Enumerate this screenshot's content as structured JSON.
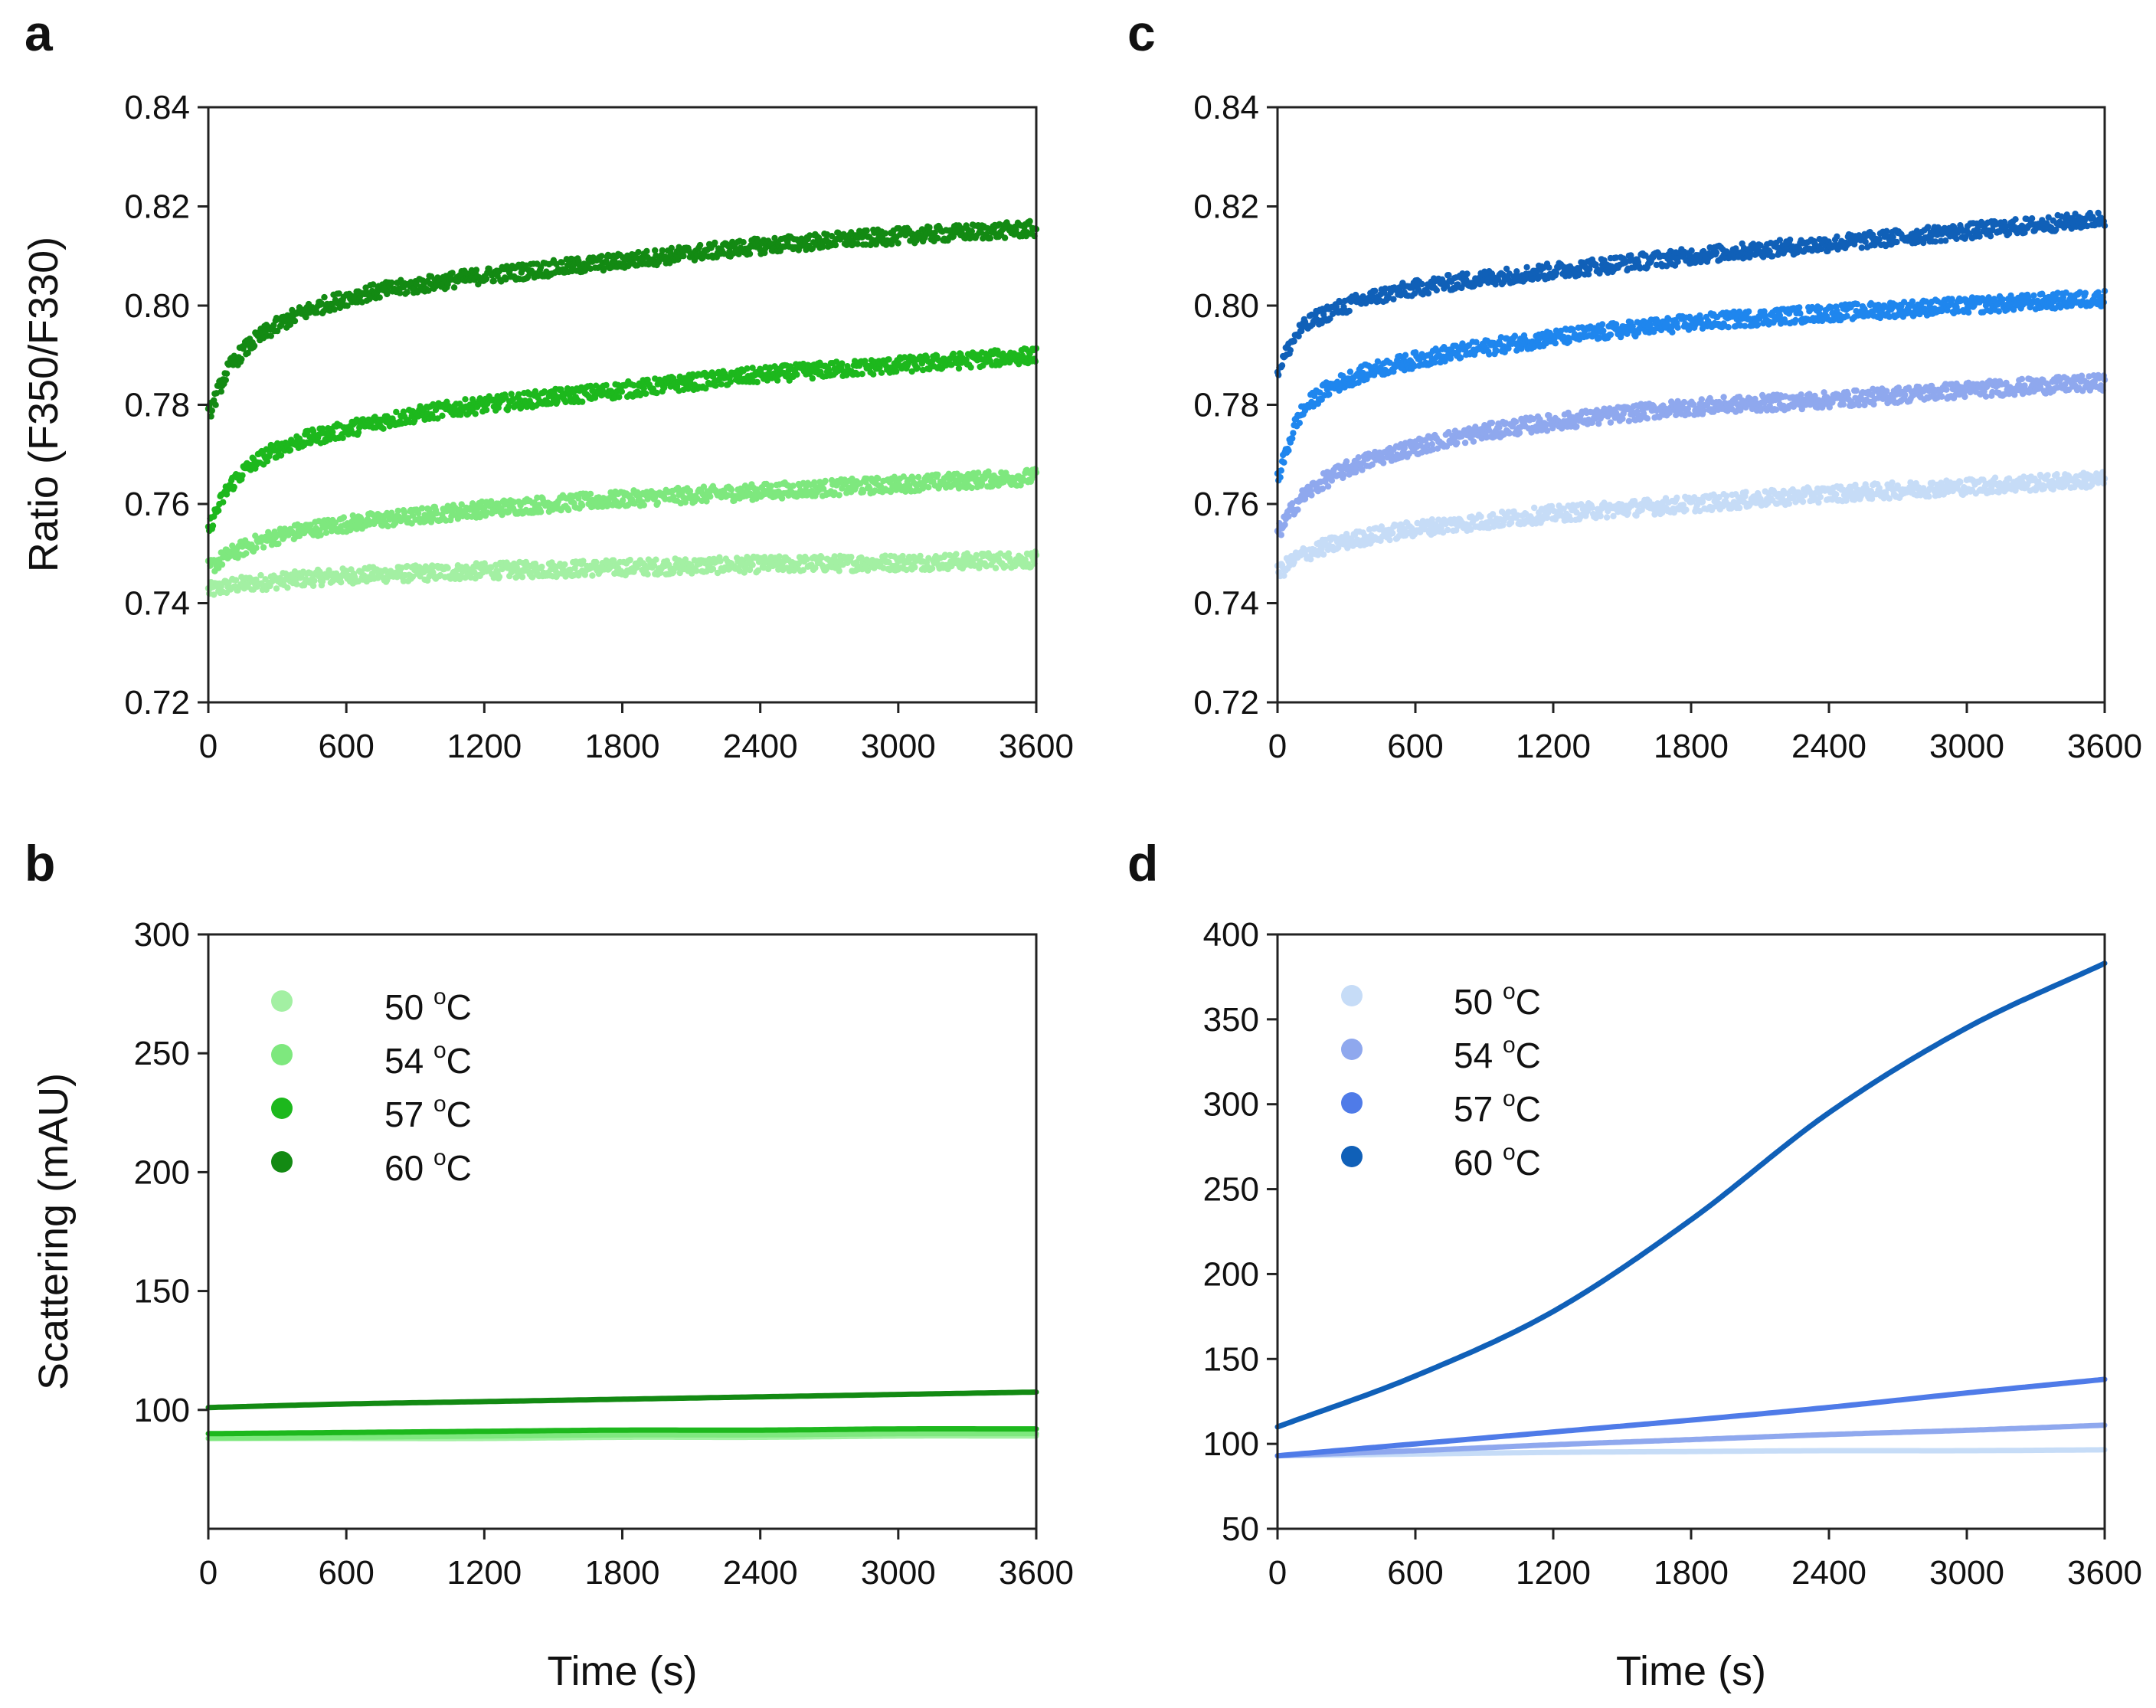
{
  "figure": {
    "panel_letters": [
      "a",
      "b",
      "c",
      "d"
    ],
    "colors": {
      "green": [
        "#a3f0a3",
        "#7ee87e",
        "#1db81d",
        "#138a13"
      ],
      "blue": [
        "#c6dcf7",
        "#8fa8ee",
        "#1f86ee",
        "#1060b8"
      ]
    }
  },
  "chart_data": [
    {
      "id": "a",
      "type": "scatter",
      "title": "",
      "xlabel": "",
      "ylabel": "Ratio (F350/F330)",
      "xlim": [
        0,
        3600
      ],
      "ylim": [
        0.72,
        0.84
      ],
      "xticks": [
        0,
        600,
        1200,
        1800,
        2400,
        3000,
        3600
      ],
      "xtick_labels": [
        "0",
        "600",
        "1200",
        "1800",
        "2400",
        "3000",
        "3600"
      ],
      "yticks": [
        0.72,
        0.74,
        0.76,
        0.78,
        0.8,
        0.82,
        0.84
      ],
      "ytick_labels": [
        "0.72",
        "0.74",
        "0.76",
        "0.78",
        "0.80",
        "0.82",
        "0.84"
      ],
      "x": [
        0,
        100,
        300,
        600,
        900,
        1200,
        1800,
        2400,
        3000,
        3600
      ],
      "series": [
        {
          "name": "50 °C",
          "color": "#a3f0a3",
          "values": [
            0.7425,
            0.7435,
            0.7445,
            0.7455,
            0.746,
            0.7465,
            0.7472,
            0.7478,
            0.7482,
            0.7488
          ]
        },
        {
          "name": "54 °C",
          "color": "#7ee87e",
          "values": [
            0.747,
            0.75,
            0.7535,
            0.756,
            0.7575,
            0.759,
            0.761,
            0.7625,
            0.764,
            0.7655
          ]
        },
        {
          "name": "57 °C",
          "color": "#1db81d",
          "values": [
            0.755,
            0.764,
            0.771,
            0.775,
            0.778,
            0.78,
            0.783,
            0.786,
            0.788,
            0.79
          ]
        },
        {
          "name": "60 °C",
          "color": "#138a13",
          "values": [
            0.778,
            0.788,
            0.796,
            0.8015,
            0.804,
            0.806,
            0.809,
            0.812,
            0.814,
            0.8155
          ]
        }
      ]
    },
    {
      "id": "b",
      "type": "line",
      "title": "",
      "xlabel": "Time (s)",
      "ylabel": "Scattering (mAU)",
      "xlim": [
        0,
        3600
      ],
      "ylim": [
        50,
        300
      ],
      "xticks": [
        0,
        600,
        1200,
        1800,
        2400,
        3000,
        3600
      ],
      "xtick_labels": [
        "0",
        "600",
        "1200",
        "1800",
        "2400",
        "3000",
        "3600"
      ],
      "yticks": [
        100,
        150,
        200,
        250,
        300
      ],
      "ytick_labels": [
        "100",
        "150",
        "200",
        "250",
        "300"
      ],
      "legend_position": "top-left",
      "legend_unit_sup": "o",
      "legend_unit": "C",
      "legend_labels": [
        "50",
        "54",
        "57",
        "60"
      ],
      "x": [
        0,
        600,
        1200,
        1800,
        2400,
        3000,
        3600
      ],
      "series": [
        {
          "name": "50 °C",
          "color": "#a3f0a3",
          "values": [
            88,
            88,
            88,
            88.5,
            88.5,
            89,
            89
          ]
        },
        {
          "name": "54 °C",
          "color": "#7ee87e",
          "values": [
            88,
            88.5,
            89,
            89.5,
            89.5,
            90,
            90
          ]
        },
        {
          "name": "57 °C",
          "color": "#1db81d",
          "values": [
            90,
            90.5,
            91,
            91.5,
            91.5,
            92,
            92
          ]
        },
        {
          "name": "60 °C",
          "color": "#138a13",
          "values": [
            101,
            102.5,
            103.5,
            104.5,
            105.5,
            106.5,
            107.5
          ]
        }
      ]
    },
    {
      "id": "c",
      "type": "scatter",
      "title": "",
      "xlabel": "",
      "ylabel": "",
      "xlim": [
        0,
        3600
      ],
      "ylim": [
        0.72,
        0.84
      ],
      "xticks": [
        0,
        600,
        1200,
        1800,
        2400,
        3000,
        3600
      ],
      "xtick_labels": [
        "0",
        "600",
        "1200",
        "1800",
        "2400",
        "3000",
        "3600"
      ],
      "yticks": [
        0.72,
        0.74,
        0.76,
        0.78,
        0.8,
        0.82,
        0.84
      ],
      "ytick_labels": [
        "0.72",
        "0.74",
        "0.76",
        "0.78",
        "0.80",
        "0.82",
        "0.84"
      ],
      "x": [
        0,
        100,
        300,
        600,
        900,
        1200,
        1800,
        2400,
        3000,
        3600
      ],
      "series": [
        {
          "name": "50 °C",
          "color": "#c6dcf7",
          "values": [
            0.746,
            0.7495,
            0.7525,
            0.755,
            0.7565,
            0.758,
            0.76,
            0.762,
            0.7635,
            0.765
          ]
        },
        {
          "name": "54 °C",
          "color": "#8fa8ee",
          "values": [
            0.754,
            0.761,
            0.767,
            0.7715,
            0.7745,
            0.7765,
            0.7795,
            0.781,
            0.783,
            0.7845
          ]
        },
        {
          "name": "57 °C",
          "color": "#1f86ee",
          "values": [
            0.765,
            0.778,
            0.785,
            0.789,
            0.7915,
            0.7935,
            0.7965,
            0.7985,
            0.8,
            0.8015
          ]
        },
        {
          "name": "60 °C",
          "color": "#1060b8",
          "values": [
            0.787,
            0.795,
            0.8,
            0.8035,
            0.8055,
            0.807,
            0.81,
            0.8125,
            0.815,
            0.8175
          ]
        }
      ]
    },
    {
      "id": "d",
      "type": "line",
      "title": "",
      "xlabel": "Time (s)",
      "ylabel": "",
      "xlim": [
        0,
        3600
      ],
      "ylim": [
        50,
        400
      ],
      "xticks": [
        0,
        600,
        1200,
        1800,
        2400,
        3000,
        3600
      ],
      "xtick_labels": [
        "0",
        "600",
        "1200",
        "1800",
        "2400",
        "3000",
        "3600"
      ],
      "yticks": [
        50,
        100,
        150,
        200,
        250,
        300,
        350,
        400
      ],
      "ytick_labels": [
        "50",
        "100",
        "150",
        "200",
        "250",
        "300",
        "350",
        "400"
      ],
      "legend_position": "top-left",
      "legend_unit_sup": "o",
      "legend_unit": "C",
      "legend_labels": [
        "50",
        "54",
        "57",
        "60"
      ],
      "x": [
        0,
        600,
        1200,
        1800,
        2400,
        3000,
        3600
      ],
      "series": [
        {
          "name": "50 °C",
          "color": "#c6dcf7",
          "values": [
            93,
            94,
            95,
            95.5,
            96,
            96,
            96.5
          ]
        },
        {
          "name": "54 °C",
          "color": "#8fa8ee",
          "values": [
            93,
            96,
            99.5,
            102.5,
            105.5,
            108,
            111
          ]
        },
        {
          "name": "57 °C",
          "color": "#4f7be8",
          "values": [
            93,
            100,
            107,
            114,
            121.5,
            130,
            138
          ]
        },
        {
          "name": "60 °C",
          "color": "#1060b8",
          "values": [
            110,
            140,
            178,
            232,
            295,
            345,
            383
          ]
        }
      ]
    }
  ]
}
